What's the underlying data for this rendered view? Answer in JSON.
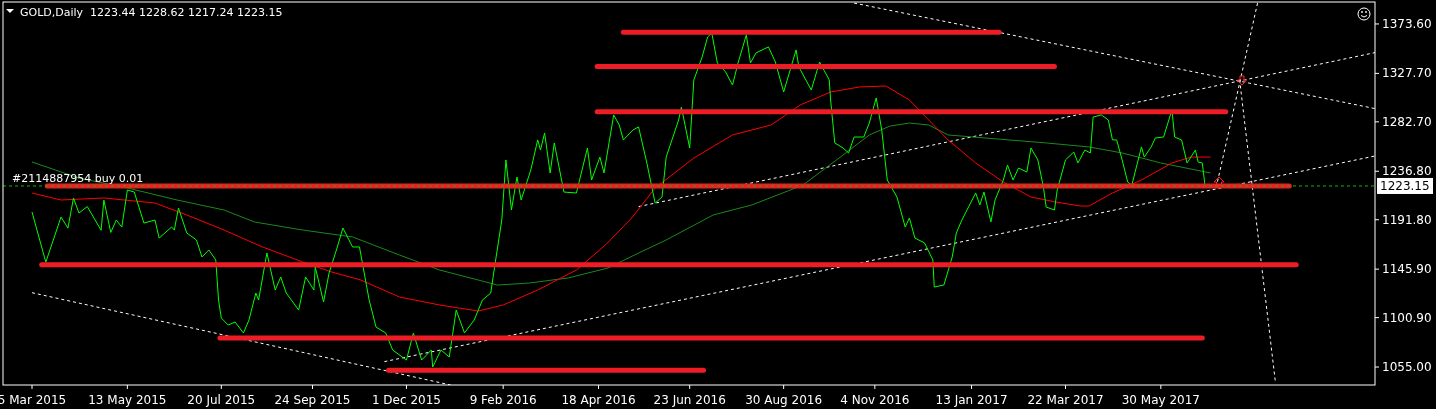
{
  "chart_data": {
    "type": "line",
    "title": "GOLD,Daily  1223.44 1228.62 1217.24 1223.15",
    "annotations": [
      "#2114887954 buy 0.01"
    ],
    "xlim": [
      "2015-02-12",
      "2017-11-01"
    ],
    "xticks": [
      {
        "value": "2015-03-05",
        "label": "5 Mar 2015"
      },
      {
        "value": "2015-05-13",
        "label": "13 May 2015"
      },
      {
        "value": "2015-07-20",
        "label": "20 Jul 2015"
      },
      {
        "value": "2015-09-24",
        "label": "24 Sep 2015"
      },
      {
        "value": "2015-12-01",
        "label": "1 Dec 2015"
      },
      {
        "value": "2016-02-09",
        "label": "9 Feb 2016"
      },
      {
        "value": "2016-04-18",
        "label": "18 Apr 2016"
      },
      {
        "value": "2016-06-23",
        "label": "23 Jun 2016"
      },
      {
        "value": "2016-08-30",
        "label": "30 Aug 2016"
      },
      {
        "value": "2016-11-04",
        "label": "4 Nov 2016"
      },
      {
        "value": "2017-01-13",
        "label": "13 Jan 2017"
      },
      {
        "value": "2017-03-22",
        "label": "22 Mar 2017"
      },
      {
        "value": "2017-05-30",
        "label": "30 May 2017"
      }
    ],
    "ylim": [
      1038.3,
      1394
    ],
    "yticks": [
      {
        "value": 1055,
        "label": "1055.00"
      },
      {
        "value": 1100.9,
        "label": "1100.90"
      },
      {
        "value": 1145.9,
        "label": "1145.90"
      },
      {
        "value": 1191.8,
        "label": "1191.80"
      },
      {
        "value": 1236.8,
        "label": "1236.80"
      },
      {
        "value": 1282.7,
        "label": "1282.70"
      },
      {
        "value": 1327.7,
        "label": "1327.70"
      },
      {
        "value": 1373.6,
        "label": "1373.60"
      }
    ],
    "ref_lines": [
      {
        "axis": "y",
        "value": 1223.15,
        "label": "1223.15",
        "color": "#00c000",
        "line_style": "dashed"
      }
    ],
    "series": [
      {
        "color": "#ffffff",
        "line_style": "dashed",
        "x": [
          "2015-03-05",
          "2016-01-02"
        ],
        "values": [
          1124,
          1038.3
        ]
      },
      {
        "color": "#ffffff",
        "line_style": "dashed",
        "x": [
          "2016-10-20",
          "2017-11-01"
        ],
        "values": [
          1393,
          1295
        ]
      },
      {
        "color": "#ffffff",
        "line_style": "dashed",
        "x": [
          "2015-11-15",
          "2017-11-01"
        ],
        "values": [
          1060,
          1251
        ]
      },
      {
        "color": "#ffffff",
        "line_style": "dashed",
        "x": [
          "2016-05-17",
          "2017-11-01"
        ],
        "values": [
          1204,
          1347
        ]
      },
      {
        "color": "#ffffff",
        "line_style": "dashed",
        "x": [
          "2017-08-08",
          "2017-07-10"
        ],
        "values": [
          1393,
          1227
        ]
      },
      {
        "color": "#ffffff",
        "line_style": "dashed",
        "x": [
          "2017-07-26",
          "2017-08-21"
        ],
        "values": [
          1322,
          1040
        ]
      },
      {
        "color": "#1a8a1a",
        "line_style": "solid",
        "x": [
          "2015-03-05",
          "2015-04-08",
          "2015-05-13",
          "2015-06-18",
          "2015-07-22",
          "2015-08-13",
          "2015-09-17",
          "2015-10-23",
          "2015-11-26",
          "2015-12-25",
          "2016-01-22",
          "2016-02-05",
          "2016-02-28",
          "2016-03-27",
          "2016-04-25",
          "2016-05-14",
          "2016-06-06",
          "2016-07-10",
          "2016-08-07",
          "2016-09-13",
          "2016-10-12",
          "2016-10-31",
          "2016-11-15",
          "2016-11-29",
          "2016-12-13",
          "2016-12-27",
          "2017-03-08",
          "2017-04-08",
          "2017-05-02",
          "2017-05-30",
          "2017-07-05"
        ],
        "values": [
          1245.4,
          1230.5,
          1221.3,
          1210.1,
          1200.8,
          1189.7,
          1182.2,
          1175.8,
          1159,
          1145.1,
          1135.8,
          1131.1,
          1133,
          1137.7,
          1147,
          1159,
          1173,
          1196.2,
          1205.5,
          1224,
          1251.9,
          1270.5,
          1278.8,
          1281.6,
          1279.8,
          1270.5,
          1263.1,
          1259.4,
          1253.8,
          1244.5,
          1235.2
        ]
      },
      {
        "color": "#ff0000",
        "line_style": "solid",
        "x": [
          "2015-03-05",
          "2015-03-26",
          "2015-04-26",
          "2015-06-02",
          "2015-06-25",
          "2015-07-22",
          "2015-08-19",
          "2015-09-17",
          "2015-10-08",
          "2015-10-29",
          "2015-11-26",
          "2015-12-25",
          "2016-01-22",
          "2016-02-09",
          "2016-03-05",
          "2016-04-02",
          "2016-04-23",
          "2016-05-12",
          "2016-05-29",
          "2016-06-26",
          "2016-07-24",
          "2016-08-21",
          "2016-09-11",
          "2016-10-03",
          "2016-10-24",
          "2016-11-12",
          "2016-11-29",
          "2016-12-20",
          "2016-12-27",
          "2017-01-16",
          "2017-02-05",
          "2017-02-25",
          "2017-03-15",
          "2017-04-02",
          "2017-04-08",
          "2017-04-25",
          "2017-05-16",
          "2017-06-07",
          "2017-06-21",
          "2017-07-05"
        ],
        "values": [
          1216.6,
          1210.1,
          1212,
          1207.3,
          1196.2,
          1182.2,
          1166.4,
          1152.5,
          1143.2,
          1135.8,
          1120,
          1112.6,
          1107,
          1112.6,
          1126.5,
          1145.1,
          1168.3,
          1193.4,
          1221.3,
          1249.1,
          1270.5,
          1279.8,
          1298.4,
          1310.4,
          1315.1,
          1316,
          1303,
          1275.1,
          1265.9,
          1244.5,
          1226.8,
          1212.9,
          1208.2,
          1204.5,
          1204.5,
          1216.6,
          1228.7,
          1244.5,
          1250,
          1250
        ]
      },
      {
        "color": "#00ff00",
        "line_style": "solid",
        "x": [
          "2015-03-05",
          "2015-03-14",
          "2015-03-15",
          "2015-03-26",
          "2015-03-31",
          "2015-04-04",
          "2015-04-08",
          "2015-04-14",
          "2015-04-24",
          "2015-04-26",
          "2015-05-01",
          "2015-05-05",
          "2015-05-09",
          "2015-05-13",
          "2015-05-18",
          "2015-05-25",
          "2015-06-02",
          "2015-06-05",
          "2015-06-14",
          "2015-06-16",
          "2015-06-19",
          "2015-06-25",
          "2015-07-02",
          "2015-07-06",
          "2015-07-11",
          "2015-07-16",
          "2015-07-18",
          "2015-07-20",
          "2015-07-25",
          "2015-07-30",
          "2015-08-05",
          "2015-08-09",
          "2015-08-14",
          "2015-08-16",
          "2015-08-22",
          "2015-08-28",
          "2015-09-01",
          "2015-09-05",
          "2015-09-14",
          "2015-09-19",
          "2015-09-25",
          "2015-09-26",
          "2015-10-02",
          "2015-10-06",
          "2015-10-12",
          "2015-10-16",
          "2015-10-23",
          "2015-10-28",
          "2015-11-04",
          "2015-11-09",
          "2015-11-16",
          "2015-11-21",
          "2015-12-01",
          "2015-12-06",
          "2015-12-12",
          "2015-12-19",
          "2015-12-20",
          "2015-12-26",
          "2016-01-01",
          "2016-01-06",
          "2016-01-12",
          "2016-01-19",
          "2016-01-25",
          "2016-01-31",
          "2016-02-03",
          "2016-02-08",
          "2016-02-11",
          "2016-02-15",
          "2016-02-19",
          "2016-02-22",
          "2016-02-29",
          "2016-03-05",
          "2016-03-07",
          "2016-03-10",
          "2016-03-14",
          "2016-03-17",
          "2016-03-24",
          "2016-04-02",
          "2016-04-10",
          "2016-04-13",
          "2016-04-19",
          "2016-04-22",
          "2016-04-29",
          "2016-05-03",
          "2016-05-06",
          "2016-05-13",
          "2016-05-17",
          "2016-05-23",
          "2016-05-29",
          "2016-06-03",
          "2016-06-06",
          "2016-06-15",
          "2016-06-17",
          "2016-06-23",
          "2016-06-26",
          "2016-07-02",
          "2016-07-06",
          "2016-07-09",
          "2016-07-13",
          "2016-07-19",
          "2016-07-24",
          "2016-07-28",
          "2016-08-03",
          "2016-08-06",
          "2016-08-10",
          "2016-08-19",
          "2016-08-24",
          "2016-08-30",
          "2016-09-08",
          "2016-09-10",
          "2016-09-19",
          "2016-09-25",
          "2016-10-02",
          "2016-10-03",
          "2016-10-06",
          "2016-10-12",
          "2016-10-16",
          "2016-10-20",
          "2016-10-27",
          "2016-10-31",
          "2016-11-05",
          "2016-11-09",
          "2016-11-13",
          "2016-11-20",
          "2016-11-26",
          "2016-11-29",
          "2016-12-03",
          "2016-12-10",
          "2016-12-16",
          "2016-12-17",
          "2016-12-24",
          "2016-12-30",
          "2017-01-02",
          "2017-01-06",
          "2017-01-16",
          "2017-01-19",
          "2017-01-22",
          "2017-01-27",
          "2017-01-30",
          "2017-02-05",
          "2017-02-08",
          "2017-02-12",
          "2017-02-16",
          "2017-02-22",
          "2017-02-25",
          "2017-03-02",
          "2017-03-06",
          "2017-03-08",
          "2017-03-14",
          "2017-03-16",
          "2017-03-22",
          "2017-03-28",
          "2017-03-31",
          "2017-04-05",
          "2017-04-09",
          "2017-04-11",
          "2017-04-17",
          "2017-04-22",
          "2017-04-25",
          "2017-04-28",
          "2017-05-02",
          "2017-05-06",
          "2017-05-09",
          "2017-05-16",
          "2017-05-18",
          "2017-05-23",
          "2017-05-26",
          "2017-06-01",
          "2017-06-07",
          "2017-06-09",
          "2017-06-14",
          "2017-06-18",
          "2017-06-24",
          "2017-06-26",
          "2017-06-29",
          "2017-07-01"
        ],
        "values": [
          1199,
          1157,
          1152.5,
          1194.3,
          1184,
          1212,
          1198,
          1204,
          1182,
          1210,
          1180,
          1191.5,
          1185,
          1219.4,
          1217.5,
          1188.7,
          1191.5,
          1174.8,
          1185,
          1182.2,
          1202.7,
          1179.5,
          1173,
          1157.2,
          1163.7,
          1154.4,
          1117.2,
          1100.5,
          1094,
          1096.8,
          1086.6,
          1098.6,
          1123.7,
          1117.2,
          1160.9,
          1126.5,
          1138.6,
          1123.7,
          1107.9,
          1138.6,
          1126.5,
          1147.9,
          1115.4,
          1142.3,
          1166.5,
          1184.1,
          1166.5,
          1166.5,
          1117.2,
          1092.1,
          1086.6,
          1070.8,
          1061.5,
          1086.6,
          1061.5,
          1070.8,
          1055,
          1070.8,
          1064.3,
          1107.9,
          1086.6,
          1098.6,
          1117.2,
          1123.7,
          1149.7,
          1191.5,
          1247.3,
          1200.8,
          1231.5,
          1210.1,
          1238,
          1265.9,
          1256.5,
          1272.4,
          1235.2,
          1263.1,
          1217.5,
          1216.6,
          1258.4,
          1228.7,
          1250,
          1235.2,
          1289.1,
          1279.8,
          1265.9,
          1275.1,
          1278,
          1244.5,
          1207.3,
          1212.9,
          1250,
          1284.4,
          1296.5,
          1258.4,
          1321.6,
          1342.9,
          1361.5,
          1365.2,
          1337.4,
          1329,
          1316.9,
          1337.4,
          1363.4,
          1337.4,
          1346.7,
          1352.3,
          1338.3,
          1310.4,
          1349.5,
          1333.7,
          1312.3,
          1338.3,
          1321.6,
          1303,
          1263.1,
          1258.4,
          1253.8,
          1268.6,
          1268.6,
          1281.6,
          1304.9,
          1275.1,
          1228.7,
          1212.9,
          1185,
          1193.4,
          1174.8,
          1170.2,
          1154.4,
          1129.3,
          1131.2,
          1157.2,
          1179.5,
          1191.5,
          1216.6,
          1205.5,
          1217.5,
          1189.7,
          1210.1,
          1228.7,
          1242.6,
          1228.7,
          1239.8,
          1236.1,
          1258.4,
          1247.3,
          1222.2,
          1203.6,
          1200.8,
          1219.4,
          1247.3,
          1254.7,
          1244.5,
          1256.5,
          1253.8,
          1287.2,
          1289.1,
          1284.4,
          1265.9,
          1265.9,
          1247.3,
          1226.8,
          1224,
          1259.4,
          1250,
          1259.4,
          1267.7,
          1268.6,
          1293.7,
          1268.6,
          1265.9,
          1244.5,
          1256.5,
          1245.4,
          1244.5,
          1223.15
        ]
      },
      {
        "color": "#ee1c24",
        "line_style": "solid",
        "x": [
          "2016-05-06",
          "2017-02-02"
        ],
        "values": [
          1366,
          1366
        ]
      },
      {
        "color": "#ee1c24",
        "line_style": "solid",
        "x": [
          "2016-04-17",
          "2017-03-14"
        ],
        "values": [
          1334,
          1334
        ]
      },
      {
        "color": "#ee1c24",
        "line_style": "solid",
        "x": [
          "2016-04-17",
          "2017-07-16"
        ],
        "values": [
          1292,
          1292
        ]
      },
      {
        "color": "#ee1c24",
        "line_style": "solid",
        "x": [
          "2015-03-16",
          "2017-08-31"
        ],
        "values": [
          1223,
          1223
        ]
      },
      {
        "color": "#ee1c24",
        "line_style": "solid",
        "x": [
          "2015-03-12",
          "2017-09-05"
        ],
        "values": [
          1150,
          1150
        ]
      },
      {
        "color": "#ee1c24",
        "line_style": "solid",
        "x": [
          "2015-07-19",
          "2017-06-29"
        ],
        "values": [
          1082,
          1082
        ]
      },
      {
        "color": "#ee1c24",
        "line_style": "solid",
        "x": [
          "2015-11-18",
          "2016-07-03"
        ],
        "values": [
          1052,
          1052
        ]
      }
    ]
  }
}
